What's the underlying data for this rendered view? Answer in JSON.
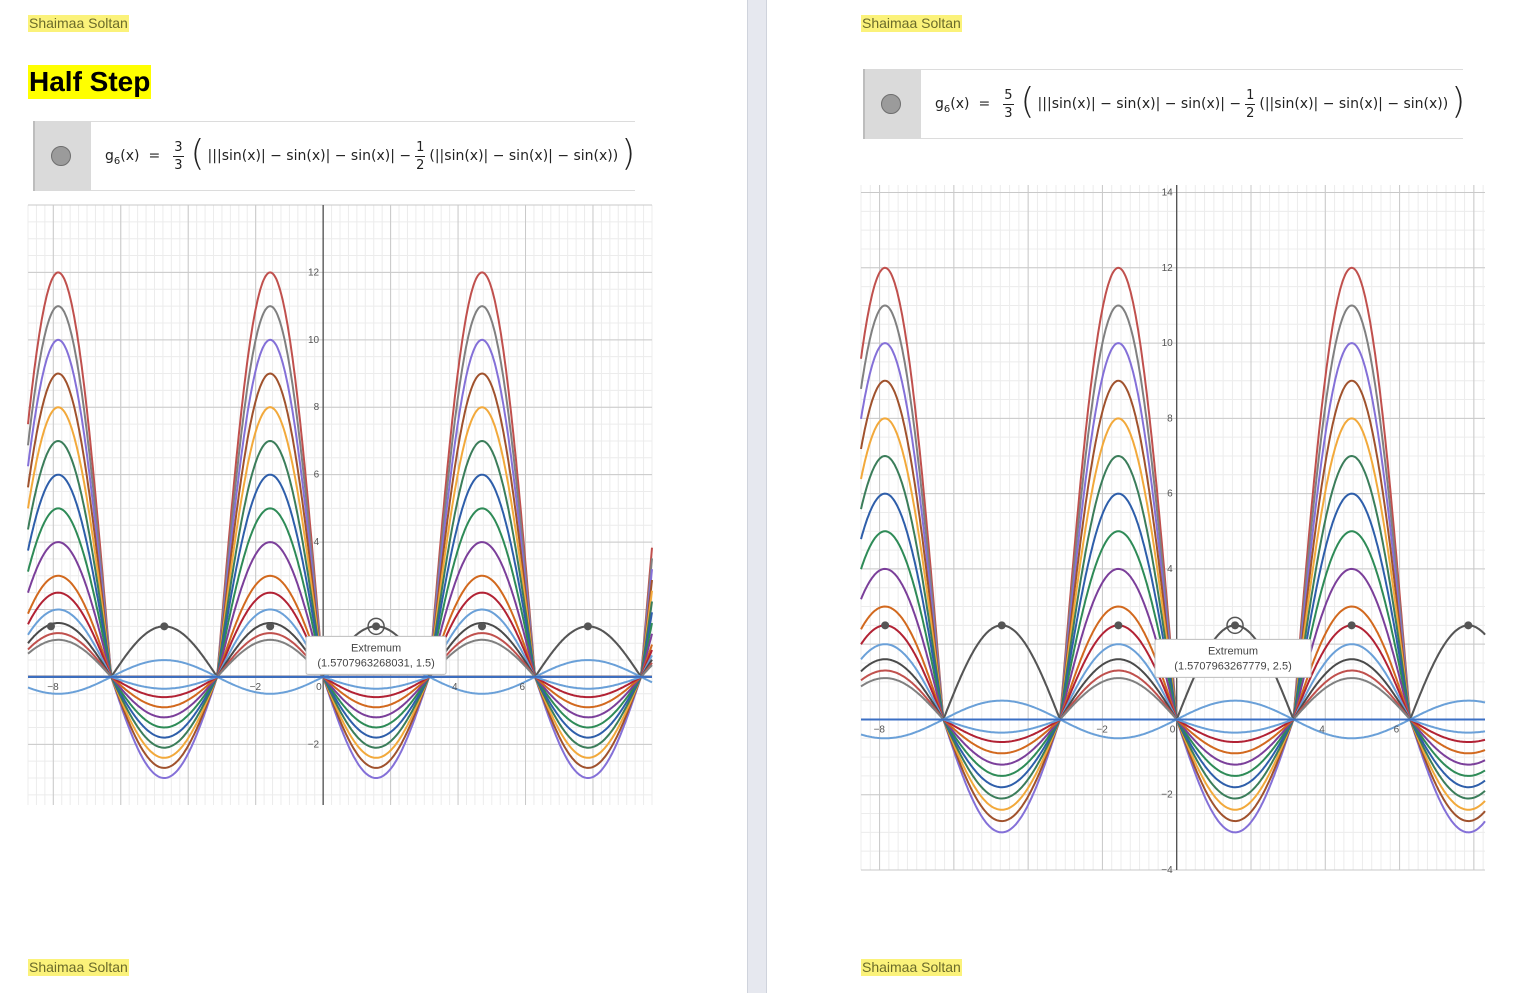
{
  "author": "Shaimaa Soltan",
  "left": {
    "heading": "Half Step",
    "formula": {
      "fname": "g",
      "fsub": "6",
      "arg": "(x)",
      "eq": "=",
      "coef_num": "3",
      "coef_den": "3",
      "expr1": "|||sin(x)| − sin(x)| − sin(x)| −",
      "half_num": "1",
      "half_den": "2",
      "expr2": "(||sin(x)| − sin(x)| − sin(x))"
    },
    "tooltip": {
      "title": "Extremum",
      "value": "(1.5707963268031, 1.5)"
    },
    "xticks": [
      "−8",
      "−2",
      "0",
      "4",
      "6"
    ],
    "yticks": [
      "12",
      "10",
      "8",
      "6",
      "4",
      "−2"
    ]
  },
  "right": {
    "formula": {
      "fname": "g",
      "fsub": "6",
      "arg": "(x)",
      "eq": "=",
      "coef_num": "5",
      "coef_den": "3",
      "expr1": "|||sin(x)| − sin(x)| − sin(x)| −",
      "half_num": "1",
      "half_den": "2",
      "expr2": "(||sin(x)| − sin(x)| − sin(x))"
    },
    "tooltip": {
      "title": "Extremum",
      "value": "(1.5707963267779, 2.5)"
    },
    "xticks": [
      "−8",
      "−2",
      "0",
      "4",
      "6"
    ],
    "yticks": [
      "14",
      "12",
      "10",
      "8",
      "6",
      "4",
      "−2",
      "−4"
    ]
  },
  "chart_data": [
    {
      "type": "line",
      "title": "",
      "xlabel": "",
      "ylabel": "",
      "xlim": [
        -8.75,
        9.75
      ],
      "ylim": [
        -3.8,
        14
      ],
      "grid": true,
      "extremum_points": [
        [
          -8.07,
          1.5
        ],
        [
          -4.71,
          1.5
        ],
        [
          -1.57,
          1.5
        ],
        [
          1.57,
          1.5
        ],
        [
          4.71,
          1.5
        ],
        [
          7.85,
          1.5
        ]
      ],
      "series_colors": [
        "#c0504d",
        "#808080",
        "#8470d8",
        "#a0522d",
        "#f2a93b",
        "#3b7d5a",
        "#2e5eaa",
        "#2e8b57",
        "#7b3f9a",
        "#d2691e",
        "#b22234",
        "#6aa0d8",
        "#4a4a4a"
      ]
    },
    {
      "type": "line",
      "title": "",
      "xlabel": "",
      "ylabel": "",
      "xlim": [
        -8.5,
        8.3
      ],
      "ylim": [
        -4,
        14.2
      ],
      "grid": true,
      "extremum_points": [
        [
          -7.85,
          2.5
        ],
        [
          -4.71,
          2.5
        ],
        [
          -1.57,
          2.5
        ],
        [
          1.57,
          2.5
        ],
        [
          4.71,
          2.5
        ],
        [
          7.85,
          2.5
        ]
      ],
      "series_colors": [
        "#c0504d",
        "#808080",
        "#8470d8",
        "#a0522d",
        "#f2a93b",
        "#3b7d5a",
        "#2e5eaa",
        "#2e8b57",
        "#7b3f9a",
        "#d2691e",
        "#b22234",
        "#6aa0d8",
        "#4a4a4a"
      ]
    }
  ]
}
